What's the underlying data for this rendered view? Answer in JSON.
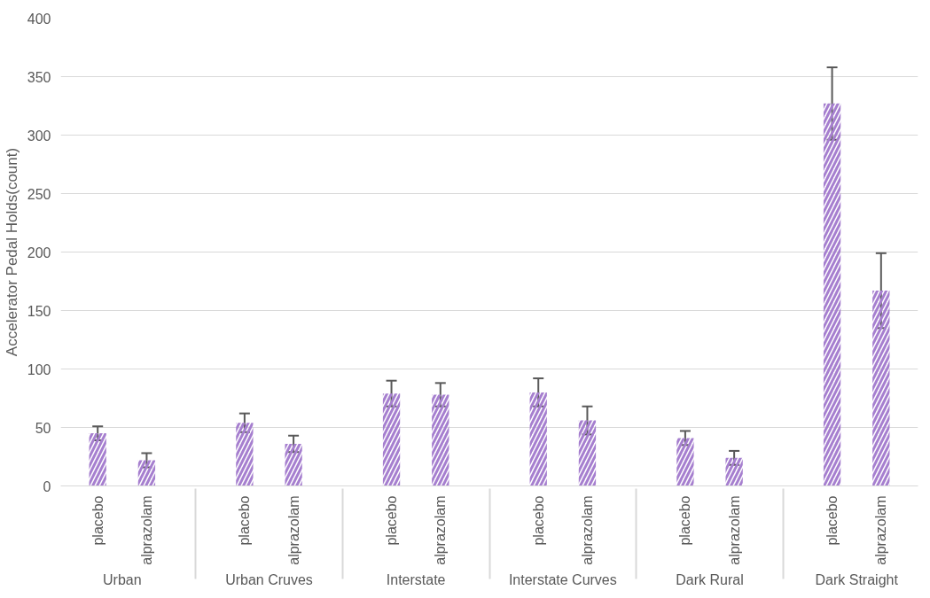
{
  "chart_data": {
    "type": "bar",
    "ylabel": "Accelerator Pedal Holds(count)",
    "categories": [
      "Urban",
      "Urban Cruves",
      "Interstate",
      "Interstate Curves",
      "Dark Rural",
      "Dark Straight"
    ],
    "series": [
      {
        "name": "placebo",
        "color": "#a67fcf",
        "values": [
          45,
          54,
          79,
          80,
          41,
          327
        ],
        "errors": [
          6,
          8,
          11,
          12,
          6,
          31
        ]
      },
      {
        "name": "alprazolam",
        "color": "#a67fcf",
        "values": [
          22,
          36,
          78,
          56,
          24,
          167
        ],
        "errors": [
          6,
          7,
          10,
          12,
          6,
          32
        ]
      }
    ],
    "ylim": [
      0,
      400
    ],
    "yticks": [
      0,
      50,
      100,
      150,
      200,
      250,
      300,
      350,
      400
    ],
    "grid": "y"
  }
}
